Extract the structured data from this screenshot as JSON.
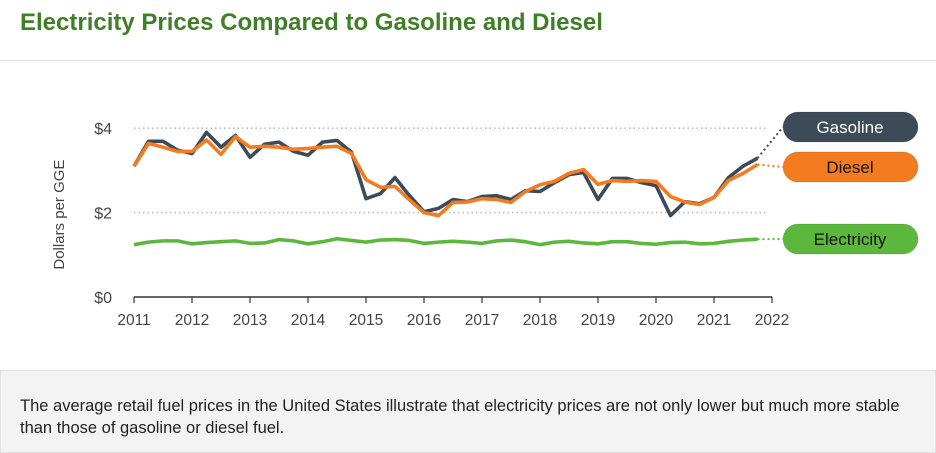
{
  "title": "Electricity Prices Compared to Gasoline and Diesel",
  "caption": "The average retail fuel prices in the United States illustrate that electricity prices are not only lower but much more stable than those of gasoline or diesel fuel.",
  "chart_data": {
    "type": "line",
    "title": "Electricity Prices Compared to Gasoline and Diesel",
    "ylabel": "Dollars per GGE",
    "xlabel": "",
    "xlim": [
      2011,
      2022
    ],
    "ylim": [
      0,
      4.2
    ],
    "x_ticks": [
      "2011",
      "2012",
      "2013",
      "2014",
      "2015",
      "2016",
      "2017",
      "2018",
      "2019",
      "2020",
      "2021",
      "2022"
    ],
    "y_ticks": [
      {
        "value": 0,
        "label": "$0"
      },
      {
        "value": 2,
        "label": "$2"
      },
      {
        "value": 4,
        "label": "$4"
      }
    ],
    "grid": "horizontal dotted at $2 and $4",
    "legend": "right, labeled pills",
    "x_start": 2011,
    "x_step": 0.25,
    "series": [
      {
        "name": "Gasoline",
        "color": "#3d4b59",
        "text_color": "#ffffff",
        "values": [
          3.1,
          3.69,
          3.69,
          3.48,
          3.4,
          3.9,
          3.55,
          3.83,
          3.31,
          3.62,
          3.67,
          3.45,
          3.36,
          3.67,
          3.71,
          3.43,
          2.33,
          2.45,
          2.83,
          2.4,
          2.02,
          2.1,
          2.31,
          2.26,
          2.38,
          2.4,
          2.31,
          2.52,
          2.5,
          2.71,
          2.9,
          2.95,
          2.31,
          2.81,
          2.81,
          2.71,
          2.64,
          1.93,
          2.26,
          2.21,
          2.36,
          2.83,
          3.1,
          3.29
        ]
      },
      {
        "name": "Diesel",
        "color": "#f47b20",
        "text_color": "#111111",
        "values": [
          3.1,
          3.64,
          3.55,
          3.45,
          3.45,
          3.72,
          3.38,
          3.8,
          3.55,
          3.57,
          3.55,
          3.5,
          3.52,
          3.55,
          3.57,
          3.4,
          2.78,
          2.6,
          2.62,
          2.3,
          2.0,
          1.93,
          2.24,
          2.25,
          2.33,
          2.31,
          2.24,
          2.5,
          2.66,
          2.74,
          2.93,
          3.02,
          2.67,
          2.76,
          2.74,
          2.76,
          2.74,
          2.38,
          2.25,
          2.19,
          2.36,
          2.76,
          2.93,
          3.14
        ]
      },
      {
        "name": "Electricity",
        "color": "#5cb83c",
        "text_color": "#111111",
        "values": [
          1.24,
          1.3,
          1.33,
          1.33,
          1.26,
          1.29,
          1.31,
          1.33,
          1.27,
          1.28,
          1.36,
          1.33,
          1.26,
          1.31,
          1.38,
          1.34,
          1.3,
          1.35,
          1.36,
          1.34,
          1.27,
          1.3,
          1.32,
          1.3,
          1.27,
          1.33,
          1.35,
          1.31,
          1.24,
          1.3,
          1.32,
          1.28,
          1.26,
          1.31,
          1.31,
          1.27,
          1.25,
          1.29,
          1.3,
          1.26,
          1.27,
          1.32,
          1.35,
          1.37
        ]
      }
    ]
  }
}
